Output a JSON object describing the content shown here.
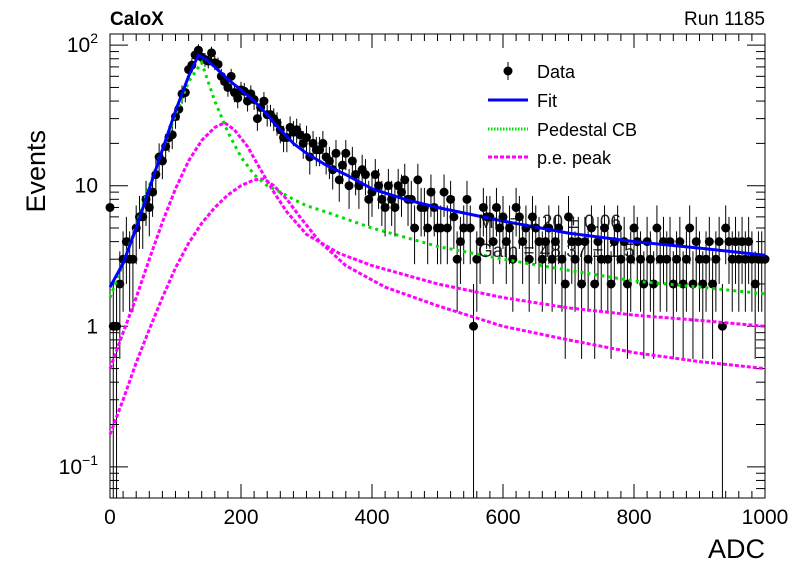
{
  "header": {
    "experiment": "CaloX",
    "run": "Run 1185"
  },
  "overlay_text": {
    "line1": "Mu = 1.20 ± 0.06",
    "line2": "Gain = 48.37 ± 1.5"
  },
  "chart_data": {
    "type": "scatter",
    "xlabel": "ADC",
    "ylabel": "Events",
    "xlim": [
      0,
      1000
    ],
    "ylim": [
      0.06,
      120
    ],
    "yscale": "log",
    "xticks": [
      0,
      200,
      400,
      600,
      800,
      1000
    ],
    "yticks": [
      {
        "value": 0.1,
        "base": "10",
        "exp": "−1"
      },
      {
        "value": 1,
        "base": "1",
        "exp": ""
      },
      {
        "value": 10,
        "base": "10",
        "exp": ""
      },
      {
        "value": 100,
        "base": "10",
        "exp": "2"
      }
    ],
    "legend": {
      "position": "top-right",
      "entries": [
        {
          "label": "Data",
          "style": "marker",
          "color": "#000000"
        },
        {
          "label": "Fit",
          "style": "line",
          "color": "#0000ff"
        },
        {
          "label": "Pedestal CB",
          "style": "dotted",
          "color": "#00dd00"
        },
        {
          "label": "p.e. peak",
          "style": "dashed",
          "color": "#ff00ff"
        }
      ]
    },
    "colors": {
      "data": "#000000",
      "fit": "#0000ff",
      "pedestal": "#00dd00",
      "pe": "#ff00ff"
    },
    "data_points": [
      [
        0,
        7
      ],
      [
        5,
        1
      ],
      [
        10,
        1
      ],
      [
        15,
        2
      ],
      [
        20,
        3
      ],
      [
        25,
        4
      ],
      [
        30,
        3
      ],
      [
        35,
        3
      ],
      [
        40,
        5
      ],
      [
        45,
        6
      ],
      [
        50,
        6
      ],
      [
        55,
        8
      ],
      [
        60,
        7
      ],
      [
        65,
        9
      ],
      [
        70,
        12
      ],
      [
        75,
        16
      ],
      [
        80,
        15
      ],
      [
        85,
        19
      ],
      [
        90,
        22
      ],
      [
        95,
        23
      ],
      [
        100,
        31
      ],
      [
        105,
        35
      ],
      [
        110,
        45
      ],
      [
        115,
        46
      ],
      [
        120,
        67
      ],
      [
        125,
        72
      ],
      [
        130,
        85
      ],
      [
        135,
        92
      ],
      [
        140,
        82
      ],
      [
        145,
        79
      ],
      [
        150,
        77
      ],
      [
        155,
        88
      ],
      [
        160,
        75
      ],
      [
        165,
        73
      ],
      [
        170,
        60
      ],
      [
        175,
        55
      ],
      [
        180,
        50
      ],
      [
        185,
        60
      ],
      [
        190,
        46
      ],
      [
        195,
        42
      ],
      [
        200,
        48
      ],
      [
        205,
        47
      ],
      [
        210,
        40
      ],
      [
        215,
        45
      ],
      [
        220,
        41
      ],
      [
        225,
        30
      ],
      [
        230,
        36
      ],
      [
        235,
        40
      ],
      [
        240,
        32
      ],
      [
        245,
        32
      ],
      [
        250,
        30
      ],
      [
        255,
        28
      ],
      [
        260,
        25
      ],
      [
        265,
        22
      ],
      [
        270,
        22
      ],
      [
        275,
        26
      ],
      [
        280,
        24
      ],
      [
        285,
        25
      ],
      [
        290,
        23
      ],
      [
        295,
        20
      ],
      [
        300,
        22
      ],
      [
        305,
        16
      ],
      [
        310,
        20
      ],
      [
        315,
        18
      ],
      [
        320,
        18
      ],
      [
        325,
        20
      ],
      [
        330,
        16
      ],
      [
        335,
        15
      ],
      [
        340,
        13
      ],
      [
        345,
        17
      ],
      [
        350,
        11
      ],
      [
        355,
        14
      ],
      [
        360,
        17
      ],
      [
        365,
        10
      ],
      [
        370,
        15
      ],
      [
        375,
        12
      ],
      [
        380,
        10
      ],
      [
        385,
        13
      ],
      [
        390,
        12
      ],
      [
        395,
        8
      ],
      [
        400,
        9
      ],
      [
        405,
        12
      ],
      [
        410,
        10
      ],
      [
        415,
        8
      ],
      [
        420,
        7
      ],
      [
        425,
        10
      ],
      [
        430,
        8
      ],
      [
        435,
        7
      ],
      [
        440,
        10
      ],
      [
        445,
        9
      ],
      [
        450,
        11
      ],
      [
        455,
        8
      ],
      [
        460,
        8
      ],
      [
        465,
        5
      ],
      [
        470,
        11
      ],
      [
        475,
        7
      ],
      [
        480,
        7
      ],
      [
        485,
        5
      ],
      [
        490,
        9
      ],
      [
        495,
        7
      ],
      [
        500,
        5
      ],
      [
        505,
        5
      ],
      [
        510,
        9
      ],
      [
        515,
        5
      ],
      [
        520,
        8
      ],
      [
        525,
        6
      ],
      [
        530,
        3
      ],
      [
        535,
        4
      ],
      [
        540,
        5
      ],
      [
        545,
        8
      ],
      [
        550,
        5
      ],
      [
        555,
        1
      ],
      [
        560,
        3
      ],
      [
        565,
        4
      ],
      [
        570,
        7
      ],
      [
        575,
        6
      ],
      [
        580,
        6
      ],
      [
        585,
        4
      ],
      [
        590,
        7
      ],
      [
        595,
        5
      ],
      [
        600,
        6
      ],
      [
        605,
        4
      ],
      [
        610,
        5
      ],
      [
        615,
        3
      ],
      [
        620,
        7
      ],
      [
        625,
        6
      ],
      [
        630,
        4
      ],
      [
        635,
        5
      ],
      [
        640,
        3
      ],
      [
        645,
        6
      ],
      [
        650,
        5
      ],
      [
        655,
        4
      ],
      [
        660,
        3
      ],
      [
        665,
        4
      ],
      [
        670,
        5
      ],
      [
        675,
        3
      ],
      [
        680,
        4
      ],
      [
        685,
        5
      ],
      [
        690,
        3
      ],
      [
        695,
        2
      ],
      [
        700,
        6
      ],
      [
        705,
        4
      ],
      [
        710,
        3
      ],
      [
        715,
        4
      ],
      [
        720,
        2
      ],
      [
        725,
        4
      ],
      [
        730,
        3
      ],
      [
        735,
        5
      ],
      [
        740,
        2
      ],
      [
        745,
        4
      ],
      [
        750,
        3
      ],
      [
        755,
        5
      ],
      [
        760,
        3
      ],
      [
        765,
        2
      ],
      [
        770,
        4
      ],
      [
        775,
        5
      ],
      [
        780,
        3
      ],
      [
        785,
        4
      ],
      [
        790,
        2
      ],
      [
        795,
        3
      ],
      [
        800,
        5
      ],
      [
        805,
        4
      ],
      [
        810,
        3
      ],
      [
        815,
        2
      ],
      [
        820,
        4
      ],
      [
        825,
        3
      ],
      [
        830,
        2
      ],
      [
        835,
        5
      ],
      [
        840,
        3
      ],
      [
        845,
        4
      ],
      [
        850,
        3
      ],
      [
        855,
        4
      ],
      [
        860,
        2
      ],
      [
        865,
        3
      ],
      [
        870,
        4
      ],
      [
        875,
        2
      ],
      [
        880,
        3
      ],
      [
        885,
        5
      ],
      [
        890,
        2
      ],
      [
        895,
        4
      ],
      [
        900,
        3
      ],
      [
        905,
        2
      ],
      [
        910,
        3
      ],
      [
        915,
        4
      ],
      [
        920,
        2
      ],
      [
        925,
        3
      ],
      [
        930,
        4
      ],
      [
        935,
        1
      ],
      [
        940,
        5
      ],
      [
        945,
        4
      ],
      [
        950,
        3
      ],
      [
        955,
        4
      ],
      [
        960,
        3
      ],
      [
        965,
        4
      ],
      [
        970,
        3
      ],
      [
        975,
        4
      ],
      [
        980,
        3
      ],
      [
        985,
        2
      ],
      [
        990,
        3
      ],
      [
        995,
        3
      ],
      [
        1000,
        3
      ]
    ],
    "fit_points": [
      [
        0,
        1.9
      ],
      [
        20,
        2.8
      ],
      [
        40,
        5.0
      ],
      [
        60,
        9.5
      ],
      [
        80,
        18
      ],
      [
        100,
        34
      ],
      [
        120,
        60
      ],
      [
        135,
        85
      ],
      [
        145,
        80
      ],
      [
        160,
        70
      ],
      [
        180,
        57
      ],
      [
        200,
        48
      ],
      [
        220,
        40
      ],
      [
        240,
        32
      ],
      [
        260,
        25
      ],
      [
        280,
        20
      ],
      [
        300,
        17
      ],
      [
        330,
        14
      ],
      [
        360,
        12
      ],
      [
        400,
        9.5
      ],
      [
        450,
        8
      ],
      [
        500,
        7
      ],
      [
        600,
        5.6
      ],
      [
        700,
        4.6
      ],
      [
        800,
        4.0
      ],
      [
        900,
        3.6
      ],
      [
        1000,
        3.2
      ]
    ],
    "pedestal_points": [
      [
        0,
        1.6
      ],
      [
        20,
        2.8
      ],
      [
        40,
        5.2
      ],
      [
        60,
        10
      ],
      [
        80,
        18
      ],
      [
        100,
        32
      ],
      [
        120,
        55
      ],
      [
        140,
        75
      ],
      [
        160,
        40
      ],
      [
        180,
        24
      ],
      [
        200,
        16
      ],
      [
        220,
        12
      ],
      [
        240,
        10
      ],
      [
        260,
        9
      ],
      [
        280,
        8
      ],
      [
        300,
        7.2
      ],
      [
        330,
        6.5
      ],
      [
        360,
        5.8
      ],
      [
        400,
        5.0
      ],
      [
        450,
        4.3
      ],
      [
        500,
        3.7
      ],
      [
        600,
        3.0
      ],
      [
        700,
        2.5
      ],
      [
        800,
        2.1
      ],
      [
        900,
        1.9
      ],
      [
        1000,
        1.7
      ]
    ],
    "pe_points": [
      [
        0,
        0.5
      ],
      [
        20,
        0.9
      ],
      [
        40,
        1.6
      ],
      [
        60,
        3.0
      ],
      [
        80,
        5.5
      ],
      [
        100,
        9.5
      ],
      [
        120,
        15
      ],
      [
        140,
        21
      ],
      [
        160,
        26
      ],
      [
        175,
        28
      ],
      [
        190,
        25
      ],
      [
        210,
        19
      ],
      [
        230,
        13
      ],
      [
        250,
        9.0
      ],
      [
        270,
        6.5
      ],
      [
        300,
        4.5
      ],
      [
        350,
        3.3
      ],
      [
        400,
        2.7
      ],
      [
        500,
        2.0
      ],
      [
        600,
        1.6
      ],
      [
        700,
        1.35
      ],
      [
        800,
        1.2
      ],
      [
        900,
        1.1
      ],
      [
        1000,
        1.0
      ]
    ],
    "pe2_points": [
      [
        0,
        0.17
      ],
      [
        20,
        0.3
      ],
      [
        40,
        0.55
      ],
      [
        60,
        0.95
      ],
      [
        80,
        1.6
      ],
      [
        100,
        2.6
      ],
      [
        120,
        3.9
      ],
      [
        140,
        5.4
      ],
      [
        160,
        7.0
      ],
      [
        180,
        8.6
      ],
      [
        200,
        10
      ],
      [
        220,
        11
      ],
      [
        235,
        11.2
      ],
      [
        250,
        10
      ],
      [
        270,
        8
      ],
      [
        290,
        6
      ],
      [
        320,
        4
      ],
      [
        360,
        2.7
      ],
      [
        420,
        1.9
      ],
      [
        500,
        1.4
      ],
      [
        600,
        1.0
      ],
      [
        700,
        0.8
      ],
      [
        800,
        0.65
      ],
      [
        900,
        0.56
      ],
      [
        1000,
        0.5
      ]
    ]
  }
}
